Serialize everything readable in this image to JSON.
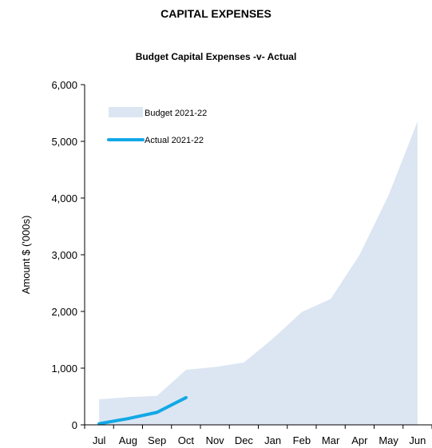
{
  "page": {
    "title": "CAPITAL EXPENSES"
  },
  "chart_data": {
    "type": "area",
    "title": "Budget Capital Expenses -v- Actual",
    "xlabel": "",
    "ylabel": "Amount $ ('000s)",
    "categories": [
      "Jul",
      "Aug",
      "Sep",
      "Oct",
      "Nov",
      "Dec",
      "Jan",
      "Feb",
      "Mar",
      "Apr",
      "May",
      "Jun"
    ],
    "ylim": [
      0,
      6000
    ],
    "yticks": [
      0,
      1000,
      2000,
      3000,
      4000,
      5000,
      6000
    ],
    "ytick_labels": [
      "0",
      "1,000",
      "2,000",
      "3,000",
      "4,000",
      "5,000",
      "6,000"
    ],
    "grid": false,
    "legend_position": "top-left",
    "series": [
      {
        "name": "Budget 2021-22",
        "kind": "area",
        "color": "#dce6f2",
        "values": [
          450,
          490,
          510,
          970,
          1020,
          1100,
          1520,
          1990,
          2220,
          3000,
          4050,
          5350
        ]
      },
      {
        "name": "Actual 2021-22",
        "kind": "line",
        "color": "#12a8e6",
        "values": [
          20,
          110,
          220,
          480,
          null,
          null,
          null,
          null,
          null,
          null,
          null,
          null
        ]
      }
    ]
  }
}
